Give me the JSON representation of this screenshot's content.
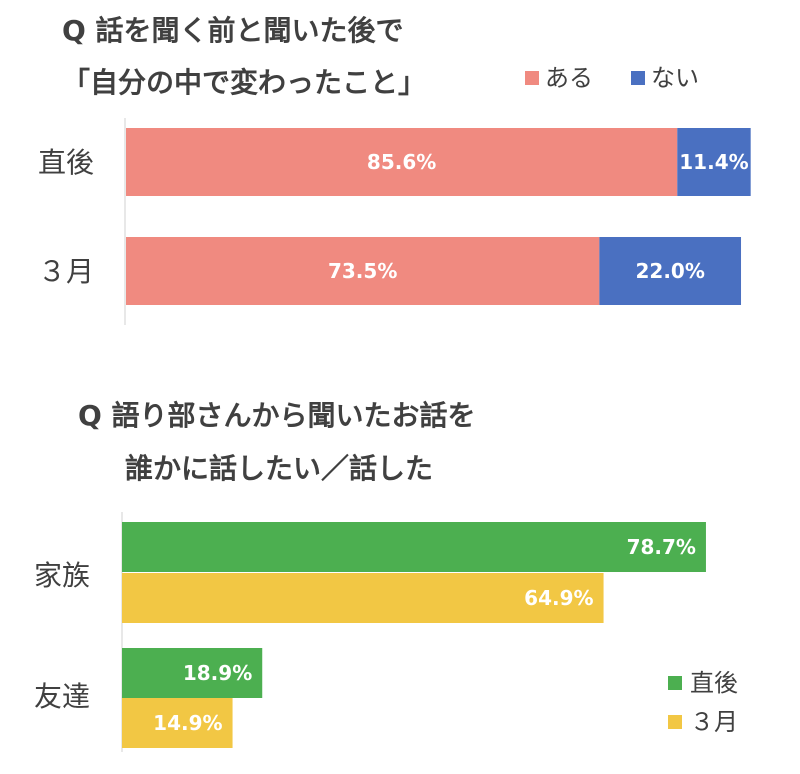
{
  "chart_data": [
    {
      "type": "bar",
      "orientation": "horizontal",
      "stacked": true,
      "title_lines": [
        "Q 話を聞く前と聞いた後で",
        "「自分の中で変わったこと」"
      ],
      "categories": [
        "直後",
        "３月"
      ],
      "series": [
        {
          "name": "ある",
          "color": "#F08A80",
          "values": [
            85.6,
            73.5
          ],
          "labels": [
            "85.6%",
            "73.5%"
          ]
        },
        {
          "name": "ない",
          "color": "#4A70C1",
          "values": [
            11.4,
            22.0
          ],
          "labels": [
            "11.4%",
            "22.0%"
          ]
        }
      ],
      "xlim": [
        0,
        100
      ],
      "legend_position": "top-right",
      "grid": false
    },
    {
      "type": "bar",
      "orientation": "horizontal",
      "stacked": false,
      "title_lines": [
        "Q 語り部さんから聞いたお話を",
        "誰かに話したい／話した"
      ],
      "categories": [
        "家族",
        "友達"
      ],
      "series": [
        {
          "name": "直後",
          "color": "#4CAF50",
          "values": [
            78.7,
            18.9
          ],
          "labels": [
            "78.7%",
            "18.9%"
          ]
        },
        {
          "name": "３月",
          "color": "#F2C744",
          "values": [
            64.9,
            14.9
          ],
          "labels": [
            "64.9%",
            "14.9%"
          ]
        }
      ],
      "xlim": [
        0,
        100
      ],
      "legend_position": "bottom-right",
      "grid": false
    }
  ]
}
